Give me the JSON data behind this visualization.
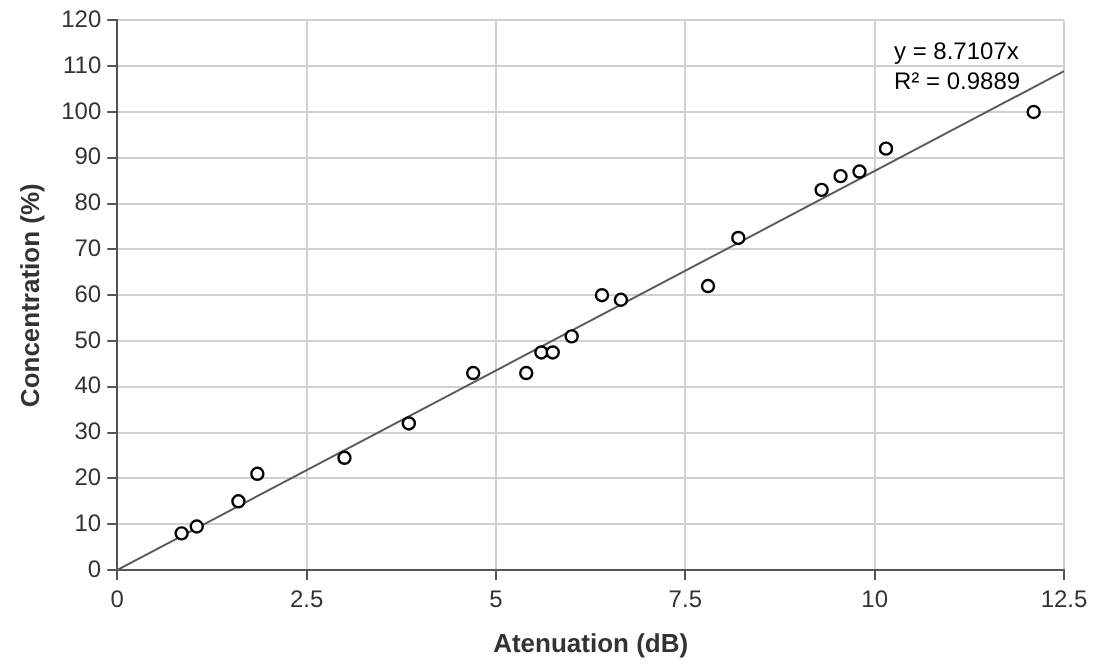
{
  "chart_data": {
    "type": "scatter",
    "xlabel": "Atenuation (dB)",
    "ylabel": "Concentration (%)",
    "xlim": [
      0,
      12.5
    ],
    "xticks": [
      {
        "value": 0,
        "label": "0"
      },
      {
        "value": 2.5,
        "label": "2.5"
      },
      {
        "value": 5,
        "label": "5"
      },
      {
        "value": 7.5,
        "label": "7.5"
      },
      {
        "value": 10,
        "label": "10"
      },
      {
        "value": 12.5,
        "label": "12.5"
      }
    ],
    "ylim": [
      0,
      120
    ],
    "yticks": [
      0,
      10,
      20,
      30,
      40,
      50,
      60,
      70,
      80,
      90,
      100,
      110,
      120
    ],
    "grid": true,
    "legend": false,
    "marker": "circle",
    "annotations": [
      "y = 8.7107x",
      "R² = 0.9889"
    ],
    "series": [
      {
        "type": "scatter",
        "color": "#000000",
        "x": [
          0.85,
          1.05,
          1.6,
          1.85,
          3.0,
          3.85,
          4.7,
          5.4,
          5.6,
          5.75,
          6.0,
          6.4,
          6.65,
          7.8,
          8.2,
          9.3,
          9.55,
          9.8,
          10.15,
          12.1
        ],
        "values": [
          8,
          9.5,
          15,
          21,
          24.5,
          32,
          43,
          43,
          47.5,
          47.5,
          51,
          60,
          59,
          62,
          72.5,
          83,
          86,
          87,
          92,
          100
        ]
      },
      {
        "type": "line",
        "color": "#595959",
        "marker": "none",
        "x": [
          0,
          12.5
        ],
        "values": [
          0,
          108.9
        ]
      }
    ]
  }
}
